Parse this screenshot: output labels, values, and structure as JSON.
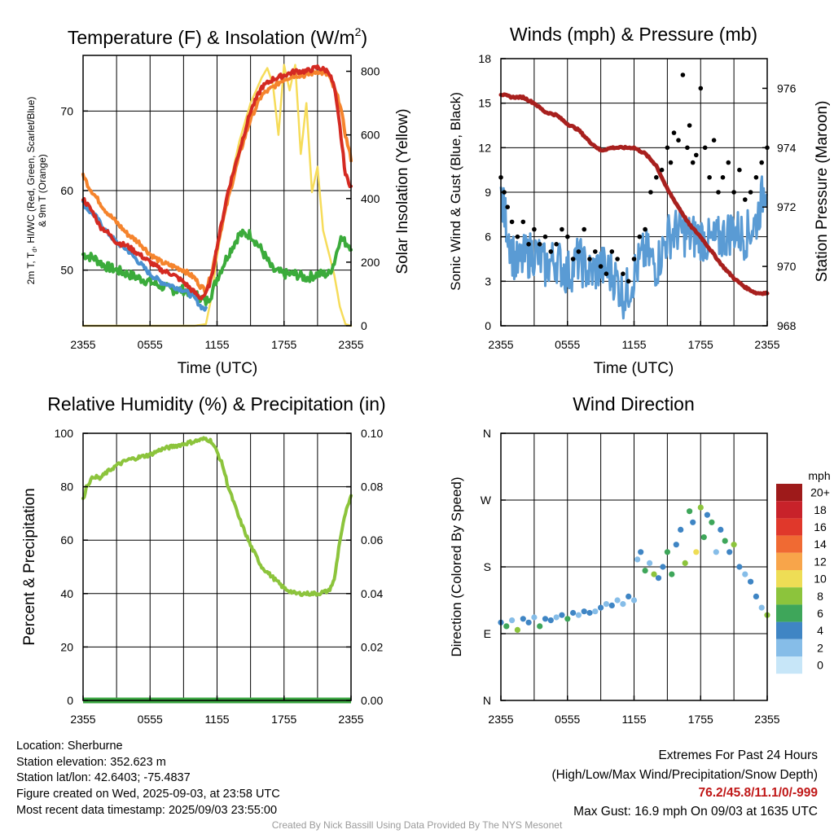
{
  "panels": {
    "temperature": {
      "title_pre": "Temperature (F) & Insolation (W/m",
      "title_sup": "2",
      "title_post": ")",
      "ylabel_line1_pre": "2m T, T",
      "ylabel_line1_sub": "d",
      "ylabel_line1_post": ", HI/WC (Red, Green, Scarlet/Blue)",
      "ylabel_line2": "& 9m T (Orange)",
      "y2label": "Solar Insolation (Yellow)",
      "xlabel": "Time (UTC)"
    },
    "winds": {
      "title": "Winds (mph) & Pressure (mb)",
      "ylabel": "Sonic Wind & Gust (Blue, Black)",
      "y2label": "Station Pressure (Maroon)",
      "xlabel": "Time (UTC)"
    },
    "humidity": {
      "title": "Relative Humidity (%) & Precipitation (in)",
      "ylabel": "Percent & Precipitation"
    },
    "direction": {
      "title": "Wind Direction",
      "ylabel": "Direction (Colored By Speed)",
      "legend_title": "mph"
    }
  },
  "colors": {
    "temp_2m": "#d42a22",
    "temp_9m": "#f5842d",
    "dewpoint": "#3bab3b",
    "wind_chill": "#4a90d0",
    "solar": "#f6dc5a",
    "wind_speed": "#5a9bd4",
    "gust": "#000000",
    "pressure": "#a8201e",
    "humidity": "#8cc43c",
    "precip": "#3aa640"
  },
  "chart_data": [
    {
      "type": "line",
      "title": "Temperature (F) & Insolation (W/m2)",
      "xlabel": "Time (UTC)",
      "ylabel": "2m T, Td, HI/WC (Red, Green, Scarlet/Blue) & 9m T (Orange)",
      "y2label": "Solar Insolation (Yellow)",
      "x_ticks": [
        "2355",
        "0555",
        "1155",
        "1755",
        "2355"
      ],
      "xlim_hours": [
        0,
        24
      ],
      "ylim": [
        43,
        77
      ],
      "y_ticks": [
        50,
        60,
        70
      ],
      "y2lim": [
        0,
        850
      ],
      "y2_ticks": [
        0,
        200,
        400,
        600,
        800
      ],
      "grid": true,
      "series": [
        {
          "name": "2m T",
          "color": "#d42a22",
          "x": [
            0,
            0.5,
            1,
            1.5,
            2,
            3,
            4,
            5,
            6,
            7,
            8,
            9,
            10.5,
            11,
            11.5,
            12,
            13,
            14,
            15,
            16,
            17,
            18,
            19,
            20,
            21,
            22,
            22.5,
            23,
            23.5,
            24
          ],
          "y": [
            59,
            58,
            57,
            55.5,
            55,
            53.5,
            53,
            52,
            51,
            50,
            49.5,
            48.5,
            46.5,
            47,
            49,
            53,
            60,
            65,
            70,
            73,
            74,
            74.5,
            75,
            75,
            75.5,
            75,
            73,
            68,
            62,
            60.5
          ]
        },
        {
          "name": "9m T",
          "color": "#f5842d",
          "x": [
            0,
            0.5,
            1,
            2,
            3,
            4,
            5,
            6,
            7,
            8,
            9,
            10,
            10.5,
            11,
            11.5,
            12,
            13,
            14,
            15,
            16,
            17,
            18,
            19,
            20,
            21,
            22,
            23,
            23.5,
            24
          ],
          "y": [
            62,
            60.5,
            59.5,
            57.5,
            56,
            54.5,
            53.5,
            52,
            51,
            50.5,
            50,
            49,
            48,
            47.5,
            49.5,
            53,
            59,
            64.5,
            69,
            72,
            73,
            74,
            74.5,
            74.5,
            75,
            74.5,
            71,
            67,
            64
          ]
        },
        {
          "name": "Dewpoint",
          "color": "#3bab3b",
          "x": [
            0,
            1,
            2,
            3,
            4,
            5,
            6,
            7,
            8,
            9,
            10,
            10.5,
            11,
            11.5,
            12,
            13,
            14,
            15,
            16,
            17,
            18,
            19,
            20,
            21,
            22,
            22.5,
            23,
            24
          ],
          "y": [
            52,
            51.5,
            50.5,
            50,
            49.5,
            49,
            48.5,
            48,
            47.5,
            47.5,
            47,
            46.5,
            46,
            47,
            49,
            52,
            54.5,
            54.5,
            52.5,
            50,
            49.5,
            49.5,
            49,
            49.5,
            49.5,
            51,
            54,
            53
          ]
        },
        {
          "name": "HI/WC",
          "color": "#4a90d0",
          "x": [
            0,
            0.5,
            1,
            2,
            3,
            4,
            5,
            6,
            7,
            8,
            9,
            10,
            10.5,
            11
          ],
          "y": [
            58.5,
            57.5,
            57,
            55,
            53.5,
            52.5,
            51,
            49.5,
            48.5,
            48,
            47.5,
            46.5,
            45.5,
            45
          ]
        },
        {
          "name": "Solar Insolation",
          "axis": "y2",
          "color": "#f6dc5a",
          "x": [
            0,
            2,
            4,
            6,
            8,
            10,
            11,
            11.5,
            12,
            13,
            14,
            15,
            16,
            16.5,
            17,
            17.5,
            18,
            18.5,
            19,
            19.5,
            20,
            20.5,
            21,
            21.5,
            22,
            22.5,
            23,
            23.5,
            24
          ],
          "y": [
            0,
            0,
            0,
            0,
            0,
            0,
            5,
            90,
            220,
            420,
            580,
            700,
            780,
            810,
            760,
            600,
            820,
            740,
            820,
            540,
            700,
            420,
            500,
            300,
            230,
            160,
            60,
            5,
            0
          ]
        }
      ]
    },
    {
      "type": "line",
      "title": "Winds (mph) & Pressure (mb)",
      "xlabel": "Time (UTC)",
      "ylabel": "Sonic Wind & Gust (Blue, Black)",
      "y2label": "Station Pressure (Maroon)",
      "x_ticks": [
        "2355",
        "0555",
        "1155",
        "1755",
        "2355"
      ],
      "xlim_hours": [
        0,
        24
      ],
      "ylim": [
        0,
        18
      ],
      "y_ticks": [
        0,
        3,
        6,
        9,
        12,
        15,
        18
      ],
      "y2lim": [
        968,
        977
      ],
      "y2_ticks": [
        968,
        970,
        972,
        974,
        976
      ],
      "grid": true,
      "series": [
        {
          "name": "Sonic Wind",
          "color": "#5a9bd4",
          "x": [
            0,
            0.5,
            1,
            1.5,
            2,
            3,
            4,
            5,
            6,
            7,
            8,
            9,
            10,
            10.5,
            11,
            11.5,
            12,
            13,
            14,
            15,
            16,
            17,
            18,
            19,
            20,
            21,
            22,
            23,
            24
          ],
          "y": [
            8.5,
            7,
            5,
            4,
            4.5,
            5,
            4,
            4.5,
            3.5,
            4.5,
            3.5,
            4,
            3.5,
            3,
            2,
            2.5,
            3.5,
            5,
            4,
            6,
            6.5,
            6,
            6,
            5.5,
            6,
            6.5,
            6,
            7,
            10
          ]
        },
        {
          "name": "Gust",
          "style": "points",
          "color": "#000000",
          "x": [
            0,
            0.3,
            0.6,
            1,
            1.5,
            2,
            2.5,
            3,
            3.5,
            4,
            4.5,
            5,
            5.5,
            6,
            6.5,
            7,
            7.5,
            8,
            8.5,
            9,
            9.5,
            10,
            10.5,
            11,
            11.5,
            12,
            12.5,
            13,
            13.5,
            14,
            14.5,
            15,
            15.3,
            15.6,
            16,
            16.4,
            16.8,
            17,
            17.3,
            17.6,
            18,
            18.4,
            18.8,
            19.2,
            19.6,
            20,
            20.5,
            21,
            21.5,
            22,
            22.5,
            23,
            23.5,
            24
          ],
          "y": [
            10,
            9,
            8,
            7,
            6,
            7,
            5.5,
            6.5,
            5.5,
            6,
            5,
            5.5,
            6.5,
            6,
            4.5,
            5,
            6.5,
            4.5,
            5,
            4,
            3.5,
            5,
            4.5,
            3.5,
            3,
            4.5,
            6,
            6.5,
            9,
            10,
            10.5,
            12,
            11,
            13,
            12.5,
            16.9,
            12,
            13.5,
            11,
            11.5,
            16,
            12,
            10,
            12.5,
            9,
            10,
            11,
            9,
            10.5,
            8.5,
            9,
            10,
            11,
            12
          ]
        },
        {
          "name": "Station Pressure",
          "axis": "y2",
          "color": "#a8201e",
          "x": [
            0,
            1,
            2,
            3,
            4,
            5,
            6,
            7,
            8,
            9,
            10,
            11,
            12,
            13,
            14,
            15,
            16,
            17,
            18,
            19,
            20,
            21,
            22,
            23,
            24
          ],
          "y": [
            975.8,
            975.7,
            975.7,
            975.5,
            975.2,
            975.1,
            974.8,
            974.6,
            974.2,
            973.9,
            974.0,
            974.0,
            974.0,
            973.8,
            973.4,
            972.6,
            972.0,
            971.4,
            971.0,
            970.5,
            970.0,
            969.6,
            969.3,
            969.1,
            969.1
          ]
        }
      ]
    },
    {
      "type": "line",
      "title": "Relative Humidity (%) & Precipitation (in)",
      "ylabel": "Percent & Precipitation",
      "x_ticks": [
        "2355",
        "0555",
        "1155",
        "1755",
        "2355"
      ],
      "xlim_hours": [
        0,
        24
      ],
      "ylim": [
        0,
        100
      ],
      "y_ticks": [
        0,
        20,
        40,
        60,
        80,
        100
      ],
      "y2lim": [
        0,
        0.1
      ],
      "y2_ticks": [
        "0.00",
        "0.02",
        "0.04",
        "0.06",
        "0.08",
        "0.10"
      ],
      "grid": true,
      "series": [
        {
          "name": "Relative Humidity",
          "color": "#8cc43c",
          "x": [
            0,
            0.3,
            0.6,
            1,
            1.5,
            2,
            3,
            4,
            5,
            6,
            7,
            8,
            9,
            10,
            11,
            11.5,
            12,
            12.5,
            13,
            14,
            15,
            16,
            17,
            18,
            19,
            20,
            21,
            22,
            22.5,
            23,
            23.5,
            24
          ],
          "y": [
            75,
            80,
            82,
            84,
            83,
            85,
            88,
            90,
            91,
            92,
            94,
            95,
            96,
            97,
            98,
            97,
            93,
            88,
            80,
            68,
            58,
            50,
            46,
            42,
            40,
            40,
            40,
            41,
            45,
            60,
            70,
            76
          ]
        },
        {
          "name": "Precipitation",
          "axis": "y2",
          "color": "#3aa640",
          "x": [
            0,
            24
          ],
          "y": [
            0,
            0
          ]
        }
      ]
    },
    {
      "type": "scatter",
      "title": "Wind Direction",
      "ylabel": "Direction (Colored By Speed)",
      "x_ticks": [
        "2355",
        "0555",
        "1155",
        "1755",
        "2355"
      ],
      "xlim_hours": [
        0,
        24
      ],
      "y_ticks": [
        "N",
        "E",
        "S",
        "W",
        "N"
      ],
      "ylim_deg": [
        0,
        360
      ],
      "grid": true,
      "legend_title": "mph",
      "legend_placement": "right",
      "legend_labels": [
        "20+",
        "18",
        "16",
        "14",
        "12",
        "10",
        "8",
        "6",
        "4",
        "2",
        "0"
      ],
      "legend_colors": [
        "#9e1a1a",
        "#c8222a",
        "#e0382b",
        "#f06a33",
        "#f8a54a",
        "#eedd55",
        "#8cc43c",
        "#3ea65a",
        "#3f85c4",
        "#86bde8",
        "#c7e6f8"
      ],
      "points": {
        "x": [
          0,
          0.5,
          1,
          1.5,
          2,
          2.5,
          3,
          3.5,
          4,
          4.5,
          5,
          5.5,
          6,
          6.5,
          7,
          7.5,
          8,
          8.5,
          9,
          9.5,
          10,
          10.5,
          11,
          11.5,
          12,
          12.3,
          12.6,
          13,
          13.4,
          13.8,
          14.2,
          14.6,
          15,
          15.4,
          15.8,
          16.2,
          16.6,
          17,
          17.3,
          17.6,
          18,
          18.3,
          18.6,
          19,
          19.4,
          19.8,
          20.2,
          20.6,
          21,
          21.5,
          22,
          22.5,
          23,
          23.5,
          24
        ],
        "y_deg": [
          105,
          100,
          108,
          95,
          110,
          105,
          112,
          100,
          110,
          108,
          112,
          115,
          110,
          118,
          115,
          120,
          118,
          120,
          125,
          130,
          128,
          135,
          130,
          140,
          135,
          190,
          200,
          175,
          185,
          170,
          165,
          180,
          200,
          170,
          210,
          230,
          185,
          255,
          240,
          200,
          260,
          220,
          250,
          240,
          200,
          230,
          215,
          200,
          210,
          180,
          170,
          160,
          140,
          125,
          115
        ],
        "speed": [
          4,
          6,
          3,
          8,
          4,
          5,
          3,
          6,
          4,
          5,
          3,
          4,
          6,
          4,
          3,
          5,
          4,
          3,
          4,
          2,
          4,
          3,
          2,
          4,
          2,
          3,
          4,
          6,
          2,
          8,
          5,
          4,
          6,
          7,
          4,
          5,
          8,
          6,
          4,
          10,
          8,
          6,
          4,
          7,
          3,
          5,
          6,
          4,
          8,
          4,
          3,
          5,
          4,
          3,
          9
        ]
      }
    }
  ],
  "station_info": [
    "Location: Sherburne",
    "Station elevation: 352.623 m",
    "Station lat/lon: 42.6403; -75.4837",
    "Figure created on Wed, 2025-09-03, at 23:58 UTC",
    "Most recent data timestamp: 2025/09/03 23:55:00"
  ],
  "extremes": {
    "line1": "Extremes For Past 24 Hours",
    "line2": "(High/Low/Max Wind/Precipitation/Snow Depth)",
    "values": "76.2/45.8/11.1/0/-999",
    "gust": "Max Gust: 16.9 mph On 09/03 at 1635 UTC"
  },
  "credit": "Created By Nick Bassill Using Data Provided By The NYS Mesonet"
}
